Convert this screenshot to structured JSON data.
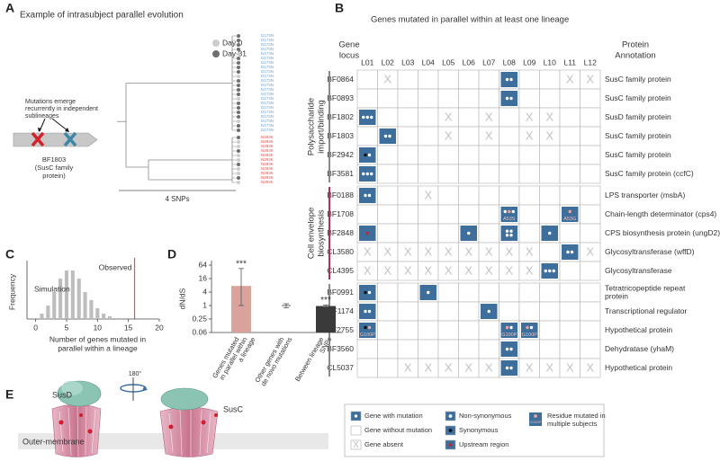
{
  "panel_labels": [
    "A",
    "B",
    "C",
    "D",
    "E"
  ],
  "panel_a": {
    "title": "Example of intrasubject parallel evolution",
    "legend": [
      {
        "label": "Day 0",
        "color": "#cccccc"
      },
      {
        "label": "Day 31",
        "color": "#6e6e6e"
      }
    ],
    "annotation": [
      "Mutations emerge",
      "recurrently in independent",
      "sublineages"
    ],
    "gene": [
      "BF1803",
      "(SusC family",
      "protein)"
    ],
    "scale": "4 SNPs",
    "tip_groups": [
      {
        "label": "D173N",
        "color": "#6f9fd3",
        "count": 22
      },
      {
        "label": "N293K",
        "color": "#d9534f",
        "count": 11
      }
    ]
  },
  "panel_b": {
    "title": "Genes mutated in parallel within at least one lineage",
    "locus_header": [
      "Gene",
      "locus"
    ],
    "annotation_header": [
      "Protein",
      "Annotation"
    ],
    "lineages": [
      "L01",
      "L02",
      "L03",
      "L04",
      "L05",
      "L06",
      "L07",
      "L08",
      "L09",
      "L10",
      "L11",
      "L12"
    ],
    "groups": [
      {
        "label": [
          "Polysaccharide",
          "import/binding"
        ],
        "color": "#8a8a8a",
        "rows": [
          {
            "locus": "BF0864",
            "annotation": "SusC family protein",
            "cells": [
              "-",
              "X",
              "-",
              "-",
              "-",
              "-",
              "-",
              {
                "dots": "NN"
              },
              "-",
              "-",
              "X",
              "X"
            ]
          },
          {
            "locus": "BF0893",
            "annotation": "SusC family protein",
            "cells": [
              "-",
              "-",
              "-",
              "-",
              "-",
              "-",
              "-",
              {
                "dots": "NN"
              },
              "-",
              "-",
              "-",
              "-"
            ]
          },
          {
            "locus": "BF1802",
            "annotation": "SusD family protein",
            "cells": [
              {
                "dots": "NNN"
              },
              "-",
              "-",
              "-",
              "X",
              "-",
              "X",
              "-",
              "X",
              "X",
              "-",
              "-"
            ]
          },
          {
            "locus": "BF1803",
            "annotation": "SusC family protein",
            "cells": [
              "-",
              {
                "dots": "NN"
              },
              "-",
              "-",
              "X",
              "-",
              "X",
              "-",
              "X",
              "X",
              "-",
              "-"
            ]
          },
          {
            "locus": "BF2942",
            "annotation": "SusC family protein",
            "cells": [
              {
                "dots": "SN"
              },
              "-",
              "-",
              "-",
              "-",
              "-",
              "-",
              "-",
              "-",
              "-",
              "-",
              "-"
            ]
          },
          {
            "locus": "BF3581",
            "annotation": "SusC family protein (ccfC)",
            "cells": [
              {
                "dots": "NNN"
              },
              "-",
              "-",
              "-",
              "-",
              "-",
              "-",
              "-",
              "-",
              "-",
              "-",
              "-"
            ]
          }
        ]
      },
      {
        "label": [
          "Cell envelope",
          "biosynthesis"
        ],
        "color": "#b0305a",
        "rows": [
          {
            "locus": "BF0188",
            "annotation": "LPS transporter (msbA)",
            "cells": [
              {
                "dots": "NN"
              },
              "-",
              "-",
              "X",
              "-",
              "-",
              "-",
              "-",
              "-",
              "-",
              "-",
              "-"
            ]
          },
          {
            "locus": "BF1708",
            "annotation": "Chain-length determinator (cps4)",
            "cells": [
              "-",
              "-",
              "-",
              "-",
              "-",
              "-",
              "-",
              {
                "dots": "NPN",
                "label": "A53S"
              },
              "-",
              "-",
              {
                "dots": "P",
                "label": "A53G"
              },
              "-"
            ]
          },
          {
            "locus": "BF2848",
            "annotation": "CPS biosynthesis protein (ungD2)",
            "cells": [
              {
                "dots": "U"
              },
              "-",
              "-",
              "-",
              "-",
              {
                "dots": "N"
              },
              "-",
              {
                "dots": "NNNN"
              },
              "-",
              {
                "dots": "N"
              },
              "-",
              "-"
            ]
          },
          {
            "locus": "CL3580",
            "annotation": "Glycosyltransferase (wffD)",
            "cells": [
              "X",
              "X",
              "X",
              "X",
              "X",
              "X",
              "X",
              "X",
              "X",
              "-",
              {
                "dots": "NN"
              },
              "X"
            ]
          },
          {
            "locus": "CL4395",
            "annotation": "Glycosyltransferase",
            "cells": [
              "X",
              "X",
              "X",
              "X",
              "X",
              "X",
              "X",
              "X",
              "X",
              {
                "dots": "NNN"
              },
              "-",
              "-"
            ]
          }
        ]
      },
      {
        "color": "#8a8a8a",
        "rows": [
          {
            "locus": "BF0991",
            "annotation": [
              "Tetratricopeptide repeat",
              "protein"
            ],
            "cells": [
              {
                "dots": "SN"
              },
              "-",
              "-",
              {
                "dots": "N"
              },
              "-",
              "-",
              "-",
              "-",
              "-",
              "-",
              "-",
              "-"
            ]
          },
          {
            "locus": "BF1174",
            "annotation": "Transcriptional regulator",
            "cells": [
              {
                "dots": "NN"
              },
              "-",
              "-",
              "-",
              "-",
              "-",
              {
                "dots": "N"
              },
              "-",
              "-",
              "-",
              "-",
              "-"
            ]
          },
          {
            "locus": "BF2755",
            "annotation": "Hypothetical protein",
            "cells": [
              {
                "dots": "SP",
                "label": "G100P"
              },
              "-",
              "-",
              "-",
              "-",
              "-",
              "-",
              {
                "dots": "PN",
                "label": "G100P"
              },
              {
                "dots": "PN",
                "label": "G100P"
              },
              "-",
              "-",
              "-"
            ]
          },
          {
            "locus": "BF3560",
            "annotation": "Dehydratase (yhaM)",
            "cells": [
              "-",
              "-",
              "-",
              "-",
              "-",
              "-",
              "-",
              {
                "dots": "NN"
              },
              "-",
              "-",
              "-",
              "-"
            ]
          },
          {
            "locus": "CL5037",
            "annotation": "Hypothetical protein",
            "cells": [
              "-",
              "-",
              "X",
              "X",
              "X",
              "X",
              "X",
              {
                "dots": "NN"
              },
              "X",
              "X",
              "X",
              "X"
            ]
          }
        ]
      }
    ],
    "legend": {
      "with_mutation": "Gene with mutation",
      "without_mutation": "Gene without mutation",
      "absent": "Gene absent",
      "absent_mark": "X",
      "non_synonymous": "Non-synonymous",
      "synonymous": "Synonymous",
      "upstream": "Upstream region",
      "residue": [
        "Residue mutated in",
        "multiple subjects"
      ],
      "residue_example": "G100P"
    }
  },
  "chart_data": [
    {
      "type": "histogram",
      "ylabel": "Frequency",
      "xlabel": [
        "Number of genes mutated in",
        "parallel within a lineage"
      ],
      "x": [
        1,
        2,
        3,
        4,
        5,
        6,
        7,
        8,
        9,
        10,
        11,
        12
      ],
      "values": [
        0.02,
        0.05,
        0.1,
        0.15,
        0.18,
        0.18,
        0.15,
        0.1,
        0.07,
        0.04,
        0.02,
        0.01
      ],
      "color": "#bdbdbd",
      "simulation_label": "Simulation",
      "observed_label": "Observed",
      "observed": 16,
      "observed_color": "#d9534f",
      "xlim": [
        -1.4,
        20
      ],
      "ylim": [
        0,
        0.2
      ],
      "xticks": [
        0,
        5,
        10,
        15,
        20
      ]
    },
    {
      "type": "bar",
      "log_scale": true,
      "ylabel": "dN/dS",
      "categories": [
        [
          "Genes mutated",
          "in parallel within",
          "a lineage"
        ],
        [
          "Other genes with",
          "de novo mutations"
        ],
        [
          "Between lineage",
          "SNPs"
        ]
      ],
      "values": [
        7.5,
        1,
        0.95
      ],
      "err_low": [
        1,
        0.8,
        0.85
      ],
      "err_high": [
        45,
        1.2,
        1.05
      ],
      "colors": [
        "#d9a39c",
        "#9a9a9a",
        "#3a3a3a"
      ],
      "styles": [
        "bar",
        "point",
        "bar"
      ],
      "significance": [
        "***",
        null,
        "***"
      ],
      "ylim": [
        0.0625,
        64
      ],
      "yticks": [
        {
          "value": 0.0625,
          "label": "0.06"
        },
        0.25,
        1,
        4,
        16,
        64
      ]
    }
  ],
  "panel_e": {
    "left": "SusD",
    "right": "SusC",
    "rotation": "180°",
    "membrane": "Outer-membrane"
  }
}
